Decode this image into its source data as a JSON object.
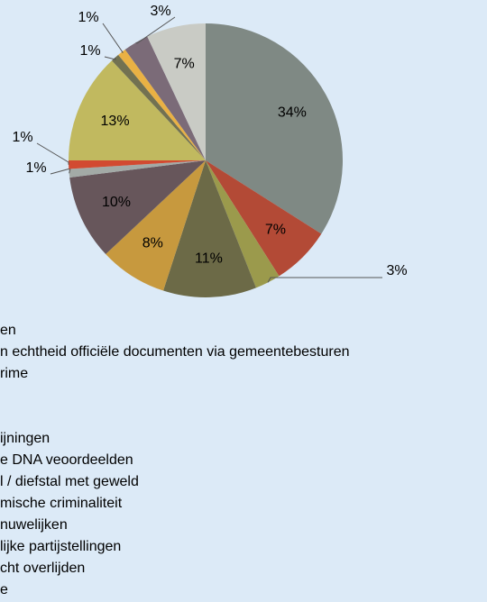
{
  "chart_data": {
    "type": "pie",
    "categories": [
      "en",
      "n echtheid officiële documenten via gemeentebesturen",
      "rime",
      null,
      null,
      "ijningen",
      "e DNA veoordeelden",
      "l / diefstal met geweld",
      "mische criminaliteit",
      "nuwelijken",
      "lijke partijstellingen",
      "cht overlijden",
      "e"
    ],
    "values": [
      34,
      7,
      3,
      11,
      8,
      10,
      1,
      1,
      13,
      1,
      1,
      3,
      7
    ],
    "value_labels": [
      "34%",
      "7%",
      "3%",
      "11%",
      "8%",
      "10%",
      "1%",
      "1%",
      "13%",
      "1%",
      "1%",
      "3%",
      "7%"
    ],
    "colors": [
      "#7f8984",
      "#b34a36",
      "#9b9a4c",
      "#6c6a47",
      "#c7993e",
      "#67565b",
      "#a3aaa6",
      "#d24a31",
      "#c1b95f",
      "#727151",
      "#e9b144",
      "#7b6b78",
      "#c9cbc5"
    ]
  }
}
